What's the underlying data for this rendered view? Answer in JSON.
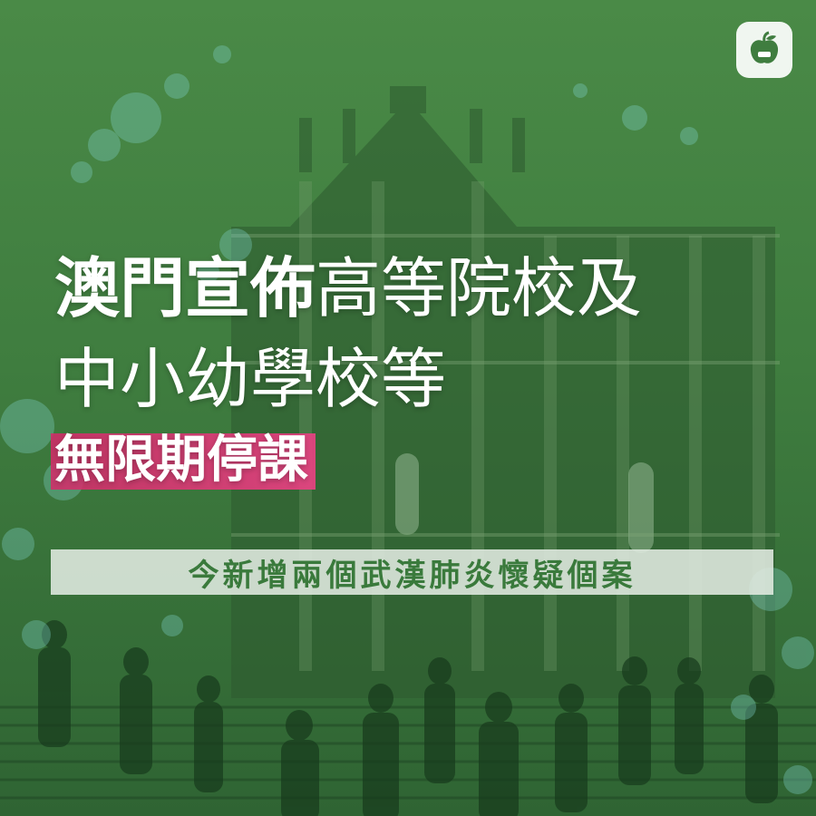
{
  "brand": {
    "logo_icon": "apple-icon",
    "accent_green": "#3f7d3f",
    "highlight_pink": "#d62a6a"
  },
  "headline": {
    "line1_bold": "澳門宣佈",
    "line1_thin": "高等院校及",
    "line2": "中小幼學校等",
    "line3_highlight": "無限期停課"
  },
  "subheadline": "今新增兩個武漢肺炎懷疑個案"
}
